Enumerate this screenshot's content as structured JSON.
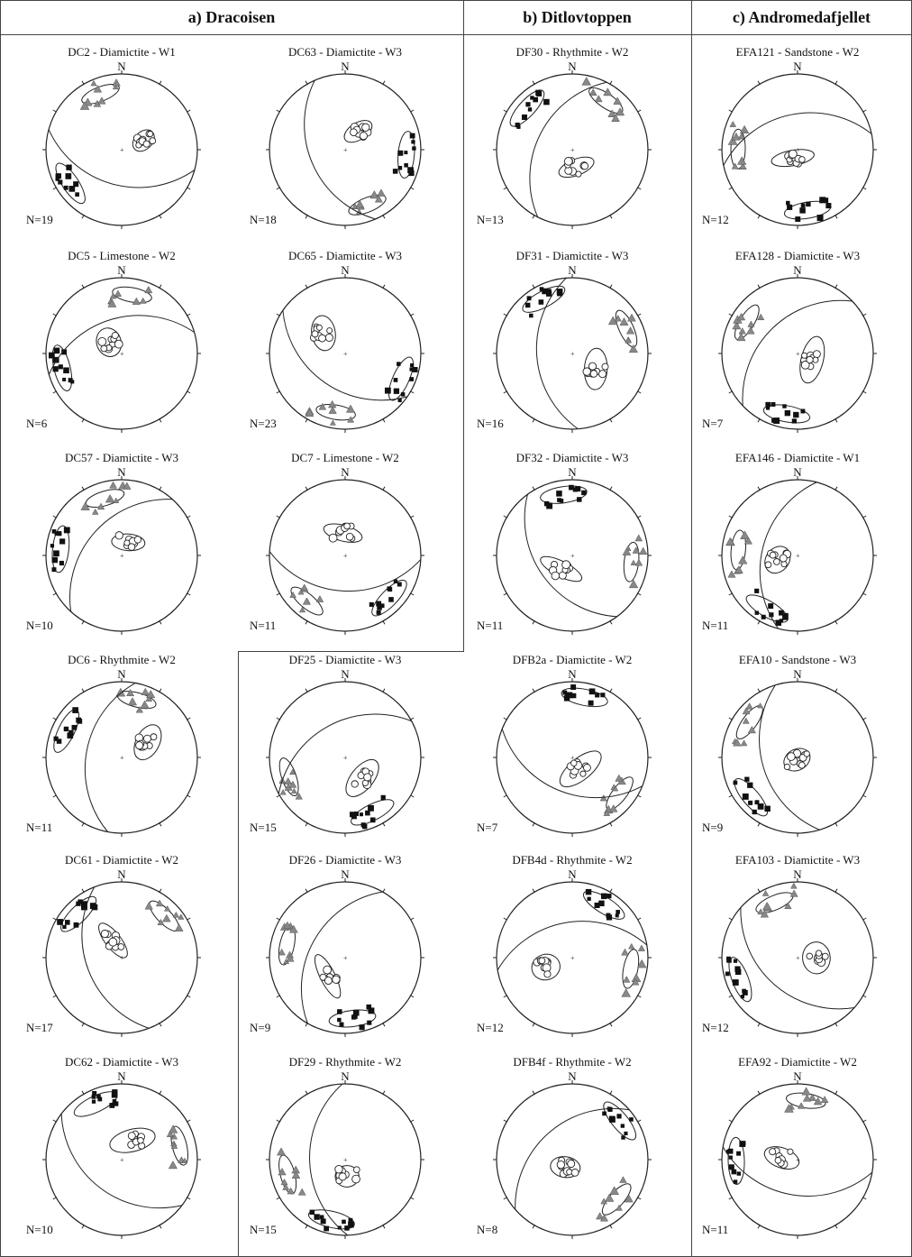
{
  "columns": [
    {
      "id": "a",
      "title": "a) Dracoisen"
    },
    {
      "id": "b",
      "title": "b) Ditlovtoppen"
    },
    {
      "id": "c",
      "title": "c) Andromedafjellet"
    }
  ],
  "north_label": "N",
  "diagrams": [
    {
      "title": "DC2 - Diamictite - W1",
      "n": "N=19",
      "seed": 11
    },
    {
      "title": "DC63 - Diamictite  - W3",
      "n": "N=18",
      "seed": 12
    },
    {
      "title": "DF30 - Rhythmite - W2",
      "n": "N=13",
      "seed": 13
    },
    {
      "title": "EFA121 - Sandstone - W2",
      "n": "N=12",
      "seed": 14
    },
    {
      "title": "DC5 - Limestone - W2",
      "n": "N=6",
      "seed": 21
    },
    {
      "title": "DC65 - Diamictite  - W3",
      "n": "N=23",
      "seed": 22
    },
    {
      "title": "DF31 - Diamictite - W3",
      "n": "N=16",
      "seed": 23
    },
    {
      "title": "EFA128 - Diamictite - W3",
      "n": "N=7",
      "seed": 24
    },
    {
      "title": "DC57 - Diamictite - W3",
      "n": "N=10",
      "seed": 31
    },
    {
      "title": "DC7 - Limestone - W2",
      "n": "N=11",
      "seed": 32
    },
    {
      "title": "DF32 - Diamictite - W3",
      "n": "N=11",
      "seed": 33
    },
    {
      "title": "EFA146 - Diamictite - W1",
      "n": "N=11",
      "seed": 34
    },
    {
      "title": "DC6 - Rhythmite - W2",
      "n": "N=11",
      "seed": 41
    },
    {
      "title": "DF25 - Diamictite - W3",
      "n": "N=15",
      "seed": 42
    },
    {
      "title": "DFB2a - Diamictite - W2",
      "n": "N=7",
      "seed": 43
    },
    {
      "title": "EFA10 - Sandstone - W3",
      "n": "N=9",
      "seed": 44
    },
    {
      "title": "DC61 - Diamictite  - W2",
      "n": "N=17",
      "seed": 51
    },
    {
      "title": "DF26 - Diamictite - W3",
      "n": "N=9",
      "seed": 52
    },
    {
      "title": "DFB4d - Rhythmite - W2",
      "n": "N=12",
      "seed": 53
    },
    {
      "title": "EFA103 - Diamictite - W3",
      "n": "N=12",
      "seed": 54
    },
    {
      "title": "DC62 - Diamictite - W3",
      "n": "N=10",
      "seed": 61
    },
    {
      "title": "DF29 - Rhythmite - W2",
      "n": "N=15",
      "seed": 62
    },
    {
      "title": "DFB4f - Rhythmite - W2",
      "n": "N=8",
      "seed": 63
    },
    {
      "title": "EFA92 - Diamictite - W2",
      "n": "N=11",
      "seed": 64
    }
  ]
}
